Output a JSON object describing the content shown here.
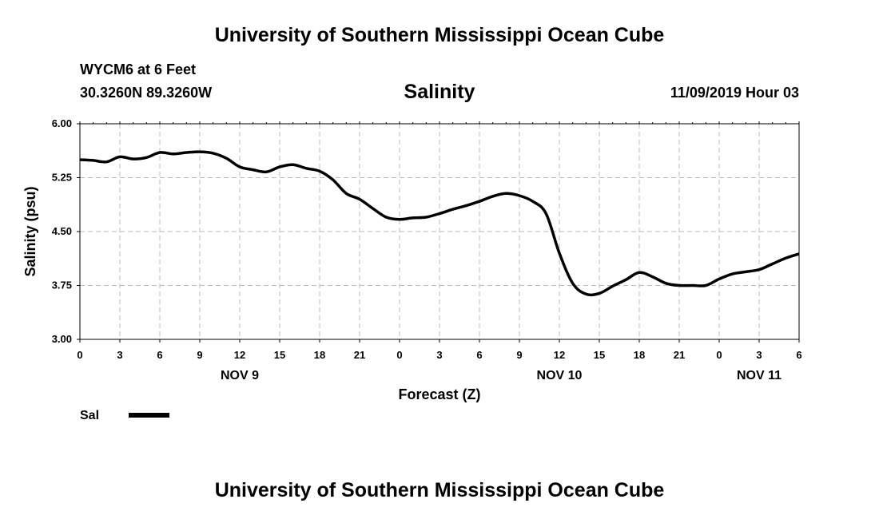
{
  "header": {
    "title_top": "University of Southern Mississippi Ocean Cube",
    "station": "WYCM6 at 6 Feet",
    "coords": "30.3260N 89.3260W",
    "datetime": "11/09/2019 Hour 03",
    "title_bottom": "University of Southern Mississippi Ocean Cube"
  },
  "colors": {
    "line": "#000000",
    "grid": "#bbbbbb",
    "axis": "#000000"
  },
  "chart_data": {
    "type": "line",
    "title": "Salinity",
    "xlabel": "Forecast (Z)",
    "ylabel": "Salinity (psu)",
    "xlim": [
      0,
      54
    ],
    "ylim": [
      3.0,
      6.0
    ],
    "yticks": [
      "6.00",
      "5.25",
      "4.50",
      "3.75",
      "3.00"
    ],
    "ytick_values": [
      6.0,
      5.25,
      4.5,
      3.75,
      3.0
    ],
    "xticks": [
      "0",
      "3",
      "6",
      "9",
      "12",
      "15",
      "18",
      "21",
      "0",
      "3",
      "6",
      "9",
      "12",
      "15",
      "18",
      "21",
      "0",
      "3",
      "6"
    ],
    "day_labels": [
      {
        "text": "NOV 9",
        "x": 12
      },
      {
        "text": "NOV 10",
        "x": 36
      },
      {
        "text": "NOV 11",
        "x": 51
      }
    ],
    "grid": true,
    "legend": {
      "position": "bottom-left",
      "entries": [
        {
          "label": "Sal"
        }
      ]
    },
    "series": [
      {
        "name": "Sal",
        "x": [
          0,
          1,
          2,
          3,
          4,
          5,
          6,
          7,
          8,
          9,
          10,
          11,
          12,
          13,
          14,
          15,
          16,
          17,
          18,
          19,
          20,
          21,
          22,
          23,
          24,
          25,
          26,
          27,
          28,
          29,
          30,
          31,
          32,
          33,
          34,
          35,
          36,
          37,
          38,
          39,
          40,
          41,
          42,
          43,
          44,
          45,
          46,
          47,
          48,
          49,
          50,
          51,
          52,
          53,
          54
        ],
        "values": [
          5.5,
          5.49,
          5.47,
          5.54,
          5.51,
          5.53,
          5.6,
          5.58,
          5.6,
          5.61,
          5.59,
          5.52,
          5.4,
          5.36,
          5.33,
          5.4,
          5.43,
          5.38,
          5.34,
          5.22,
          5.03,
          4.95,
          4.82,
          4.7,
          4.67,
          4.69,
          4.7,
          4.75,
          4.81,
          4.86,
          4.92,
          4.99,
          5.03,
          5.0,
          4.92,
          4.75,
          4.2,
          3.78,
          3.63,
          3.64,
          3.74,
          3.83,
          3.93,
          3.87,
          3.78,
          3.75,
          3.75,
          3.75,
          3.84,
          3.91,
          3.94,
          3.97,
          4.05,
          4.13,
          4.19
        ]
      }
    ]
  }
}
